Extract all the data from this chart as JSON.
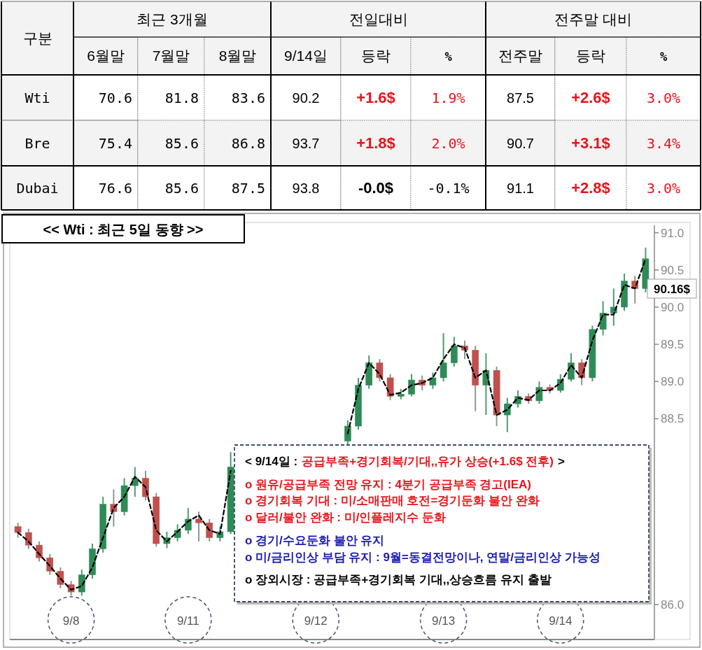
{
  "chart_data": [
    {
      "type": "other",
      "annotations": [
        "구분",
        "최근 3개월",
        "전일대비",
        "전주말 대비",
        "6월말",
        "7월말",
        "8월말",
        "9/14일",
        "등락",
        "%",
        "전주말",
        "등락",
        "%",
        "Wti",
        "70.6",
        "81.8",
        "83.6",
        "90.2",
        "+1.6$",
        "1.9%",
        "87.5",
        "+2.6$",
        "3.0%",
        "Bre",
        "75.4",
        "85.6",
        "86.8",
        "93.7",
        "+1.8$",
        "2.0%",
        "90.7",
        "+3.1$",
        "3.4%",
        "Dubai",
        "76.6",
        "85.6",
        "87.5",
        "93.8",
        "-0.0$",
        "-0.1%",
        "91.1",
        "+2.8$",
        "3.0%"
      ]
    },
    {
      "type": "candlestick",
      "title": "<< Wti : 최근 5일 동향 >>",
      "categories": [
        null,
        null,
        null,
        null,
        null,
        "9/8",
        null,
        null,
        null,
        null,
        null,
        null,
        null,
        null,
        null,
        null,
        "9/11",
        null,
        null,
        null,
        null,
        null,
        null,
        null,
        null,
        null,
        null,
        null,
        "9/12",
        null,
        null,
        null,
        null,
        null,
        null,
        null,
        null,
        null,
        null,
        null,
        "9/13",
        null,
        null,
        null,
        null,
        null,
        null,
        null,
        null,
        null,
        null,
        "9/14",
        null,
        null,
        null,
        null,
        null,
        null,
        null,
        null
      ],
      "ohlc": [
        [
          87.05,
          87.1,
          86.9,
          86.97
        ],
        [
          86.97,
          87.02,
          86.75,
          86.8
        ],
        [
          86.8,
          86.85,
          86.58,
          86.63
        ],
        [
          86.63,
          86.68,
          86.4,
          86.45
        ],
        [
          86.45,
          86.5,
          86.22,
          86.27
        ],
        [
          86.27,
          86.32,
          86.12,
          86.17
        ],
        [
          86.17,
          86.47,
          86.12,
          86.4
        ],
        [
          86.4,
          86.82,
          86.35,
          86.75
        ],
        [
          86.75,
          87.45,
          86.7,
          87.35
        ],
        [
          87.35,
          87.55,
          87.05,
          87.25
        ],
        [
          87.25,
          87.7,
          87.2,
          87.6
        ],
        [
          87.6,
          87.85,
          87.45,
          87.7
        ],
        [
          87.7,
          87.8,
          87.4,
          87.45
        ],
        [
          87.45,
          87.5,
          86.78,
          86.82
        ],
        [
          86.82,
          86.98,
          86.76,
          86.9
        ],
        [
          86.9,
          87.08,
          86.85,
          87.0
        ],
        [
          87.0,
          87.3,
          86.95,
          87.15
        ],
        [
          87.15,
          87.25,
          86.85,
          87.1
        ],
        [
          87.1,
          87.15,
          86.85,
          86.9
        ],
        [
          86.9,
          87.05,
          86.85,
          86.98
        ],
        [
          86.98,
          88.05,
          86.95,
          87.85
        ],
        null,
        null,
        null,
        null,
        null,
        null,
        null,
        null,
        null,
        null,
        [
          88.2,
          88.48,
          88.15,
          88.4
        ],
        [
          88.4,
          89.05,
          88.35,
          88.95
        ],
        [
          88.95,
          89.35,
          88.9,
          89.25
        ],
        [
          89.25,
          89.3,
          89.0,
          89.05
        ],
        [
          89.05,
          89.1,
          88.75,
          88.8
        ],
        [
          88.8,
          88.9,
          88.76,
          88.83
        ],
        [
          88.83,
          89.1,
          88.8,
          89.02
        ],
        [
          89.02,
          89.08,
          88.88,
          88.95
        ],
        [
          88.95,
          89.12,
          88.9,
          89.05
        ],
        [
          89.05,
          89.65,
          89.0,
          89.25
        ],
        [
          89.25,
          89.6,
          89.2,
          89.48
        ],
        [
          89.48,
          89.55,
          89.3,
          89.42
        ],
        [
          89.42,
          89.48,
          88.6,
          88.95
        ],
        [
          88.95,
          89.38,
          88.55,
          89.15
        ],
        [
          89.15,
          89.2,
          88.4,
          88.55
        ],
        [
          88.55,
          88.78,
          88.32,
          88.7
        ],
        [
          88.7,
          88.88,
          88.65,
          88.8
        ],
        [
          88.8,
          88.84,
          88.7,
          88.74
        ],
        [
          88.74,
          89.0,
          88.7,
          88.92
        ],
        [
          88.92,
          88.96,
          88.84,
          88.88
        ],
        [
          88.88,
          89.1,
          88.85,
          89.03
        ],
        [
          89.03,
          89.38,
          89.0,
          89.25
        ],
        [
          89.25,
          89.3,
          88.95,
          89.05
        ],
        [
          89.05,
          89.75,
          89.0,
          89.7
        ],
        [
          89.7,
          90.08,
          89.62,
          89.92
        ],
        [
          89.92,
          90.25,
          89.75,
          90.0
        ],
        [
          90.0,
          90.45,
          89.95,
          90.35
        ],
        [
          90.35,
          90.42,
          90.05,
          90.25
        ],
        [
          90.25,
          90.8,
          90.2,
          90.65
        ]
      ],
      "series": [
        {
          "type": "line",
          "color": "#000000",
          "line_style": "dashed",
          "values": [
            86.97,
            86.85,
            86.68,
            86.52,
            86.35,
            86.2,
            86.25,
            86.5,
            86.9,
            87.3,
            87.45,
            87.72,
            87.58,
            87.0,
            86.85,
            86.98,
            87.12,
            87.2,
            87.0,
            86.95,
            87.8,
            null,
            null,
            null,
            null,
            null,
            null,
            null,
            null,
            null,
            null,
            88.3,
            88.9,
            89.25,
            89.1,
            88.82,
            88.85,
            88.95,
            88.98,
            89.05,
            89.3,
            89.5,
            89.45,
            89.05,
            89.15,
            88.55,
            88.62,
            88.78,
            88.75,
            88.88,
            88.88,
            88.98,
            89.22,
            89.05,
            89.55,
            89.9,
            89.9,
            90.3,
            90.25,
            90.65
          ]
        }
      ],
      "ylim": [
        85.55,
        91.1
      ],
      "yticks": [
        {
          "value": 86,
          "label": "86.0"
        },
        88.5,
        {
          "value": 89,
          "label": "89.0"
        },
        89.5,
        {
          "value": 90,
          "label": "90.0"
        },
        90.5,
        {
          "value": 91,
          "label": "91.0"
        }
      ],
      "annotations": [
        "< 9/14일 :",
        "공급부족+경기회복/기대,,유가 상승(+1.6$ 전후)",
        ">",
        "o 원유/공급부족 전망 유지 : 4분기 공급부족 경고(IEA)",
        "o 경기회복 기대 : 미/소매판매 호전=경기둔화 불안 완화",
        "o 달러/불안 완화 : 미/인플레지수 둔화",
        "o 경기/수요둔화 불안 유지",
        "o 미/금리인상 부담 유지 : 9월=동결전망이나, 연말/금리인상 가능성",
        "o 장외시장 : 공급부족+경기회복 기대,,상승흐름 유지 출발",
        "90.16$"
      ]
    }
  ]
}
